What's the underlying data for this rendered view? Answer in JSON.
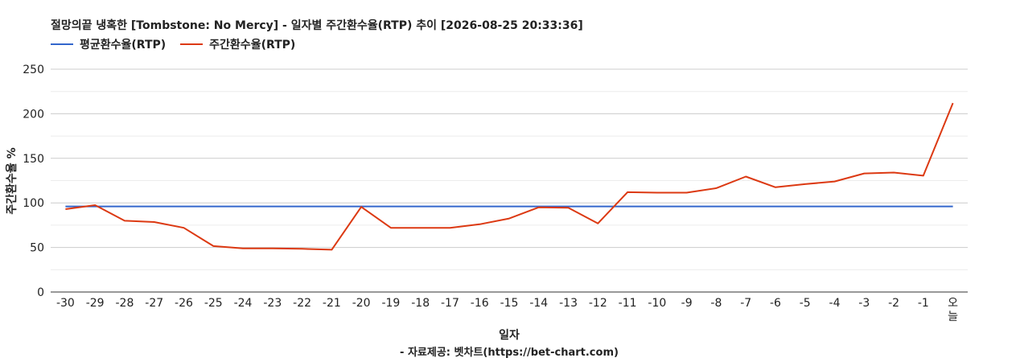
{
  "chart_data": {
    "type": "line",
    "title": "절망의끝 냉혹한 [Tombstone: No Mercy] - 일자별 주간환수율(RTP) 추이 [2026-08-25 20:33:36]",
    "xlabel": "일자",
    "ylabel": "주간환수율 %",
    "source": "- 자료제공: 벳차트(https://bet-chart.com)",
    "categories": [
      "-30",
      "-29",
      "-28",
      "-27",
      "-26",
      "-25",
      "-24",
      "-23",
      "-22",
      "-21",
      "-20",
      "-19",
      "-18",
      "-17",
      "-16",
      "-15",
      "-14",
      "-13",
      "-12",
      "-11",
      "-10",
      "-9",
      "-8",
      "-7",
      "-6",
      "-5",
      "-4",
      "-3",
      "-2",
      "-1",
      "오늘"
    ],
    "ylim": [
      0,
      250
    ],
    "yticks": [
      0,
      50,
      100,
      150,
      200,
      250
    ],
    "grid": true,
    "legend_position": "top-left",
    "series": [
      {
        "name": "평균환수율(RTP)",
        "color": "#3366cc",
        "values": [
          96,
          96,
          96,
          96,
          96,
          96,
          96,
          96,
          96,
          96,
          96,
          96,
          96,
          96,
          96,
          96,
          96,
          96,
          96,
          96,
          96,
          96,
          96,
          96,
          96,
          96,
          96,
          96,
          96,
          96,
          96
        ]
      },
      {
        "name": "주간환수율(RTP)",
        "color": "#dc3912",
        "values": [
          93,
          97.5,
          80,
          78.5,
          72,
          51.5,
          49,
          49,
          48.5,
          47.5,
          95.5,
          72,
          72,
          72,
          76,
          82.5,
          95,
          94.5,
          77,
          112,
          111.5,
          111.5,
          116.5,
          129.5,
          117.5,
          121,
          124,
          133,
          134,
          130.5,
          212
        ]
      }
    ]
  }
}
